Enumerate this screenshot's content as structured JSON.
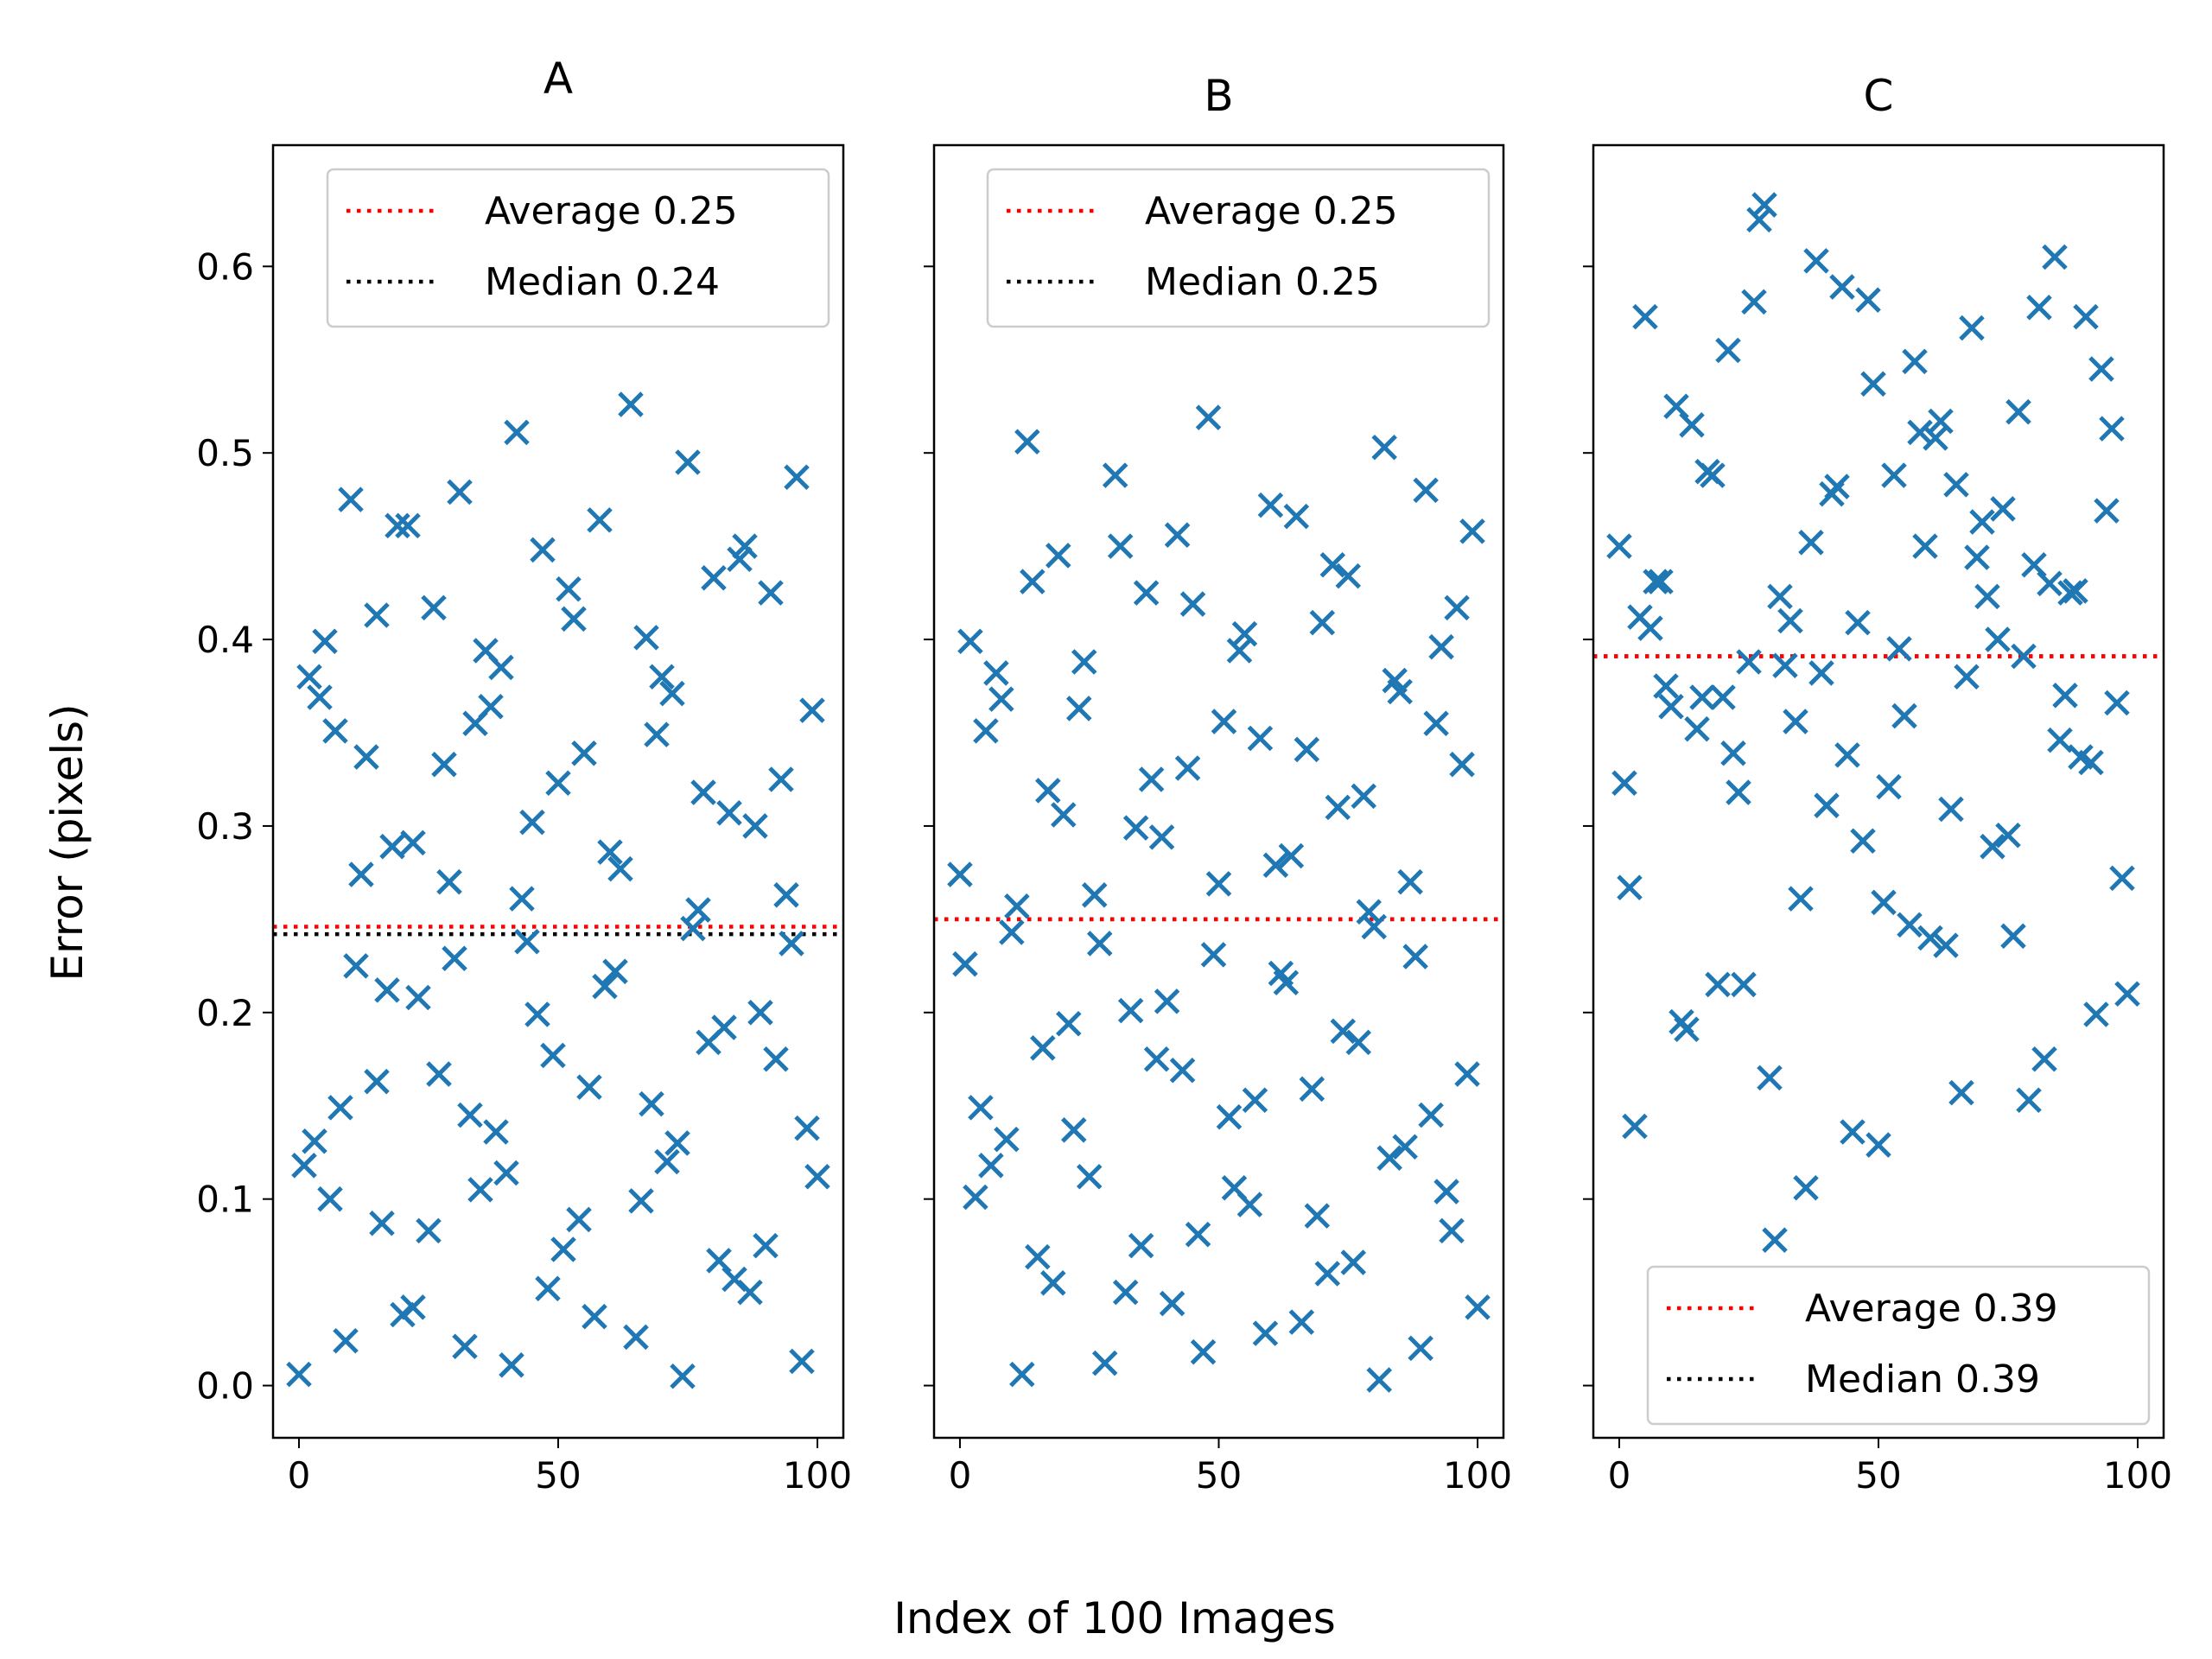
{
  "figure": {
    "xlabel": "Index of 100 Images",
    "ylabel": "Error (pixels)"
  },
  "colors": {
    "marker": "#1f77b4",
    "average_line": "#ff0000",
    "median_line": "#000000"
  },
  "chart_data": [
    {
      "type": "scatter",
      "title": "A",
      "marker": "x",
      "xlim": [
        -5,
        105
      ],
      "ylim": [
        -0.028,
        0.665
      ],
      "xticks": [
        0,
        50,
        100
      ],
      "yticks": [
        0.0,
        0.1,
        0.2,
        0.3,
        0.4,
        0.5,
        0.6
      ],
      "ytick_labels": [
        "0.0",
        "0.1",
        "0.2",
        "0.3",
        "0.4",
        "0.5",
        "0.6"
      ],
      "legend_position": "upper-right",
      "reference_lines": [
        {
          "label": "Average 0.25",
          "value": 0.246,
          "color": "#ff0000",
          "style": "dotted"
        },
        {
          "label": "Median 0.24",
          "value": 0.242,
          "color": "#000000",
          "style": "dotted"
        }
      ],
      "points": [
        [
          0,
          0.006
        ],
        [
          1,
          0.118
        ],
        [
          2,
          0.38
        ],
        [
          3,
          0.131
        ],
        [
          4,
          0.369
        ],
        [
          5,
          0.399
        ],
        [
          6,
          0.1
        ],
        [
          7,
          0.351
        ],
        [
          8,
          0.149
        ],
        [
          9,
          0.024
        ],
        [
          10,
          0.475
        ],
        [
          11,
          0.225
        ],
        [
          12,
          0.274
        ],
        [
          13,
          0.337
        ],
        [
          15,
          0.163
        ],
        [
          15,
          0.413
        ],
        [
          16,
          0.087
        ],
        [
          17,
          0.212
        ],
        [
          18,
          0.289
        ],
        [
          19,
          0.461
        ],
        [
          20,
          0.038
        ],
        [
          21,
          0.461
        ],
        [
          22,
          0.042
        ],
        [
          22,
          0.291
        ],
        [
          23,
          0.208
        ],
        [
          25,
          0.083
        ],
        [
          26,
          0.417
        ],
        [
          27,
          0.167
        ],
        [
          28,
          0.333
        ],
        [
          29,
          0.27
        ],
        [
          30,
          0.229
        ],
        [
          31,
          0.479
        ],
        [
          32,
          0.021
        ],
        [
          33,
          0.145
        ],
        [
          34,
          0.355
        ],
        [
          35,
          0.105
        ],
        [
          36,
          0.394
        ],
        [
          37,
          0.364
        ],
        [
          38,
          0.136
        ],
        [
          39,
          0.385
        ],
        [
          40,
          0.114
        ],
        [
          41,
          0.011
        ],
        [
          42,
          0.511
        ],
        [
          43,
          0.261
        ],
        [
          44,
          0.238
        ],
        [
          45,
          0.302
        ],
        [
          46,
          0.199
        ],
        [
          47,
          0.448
        ],
        [
          48,
          0.052
        ],
        [
          49,
          0.177
        ],
        [
          50,
          0.323
        ],
        [
          51,
          0.073
        ],
        [
          52,
          0.427
        ],
        [
          53,
          0.411
        ],
        [
          54,
          0.089
        ],
        [
          55,
          0.339
        ],
        [
          56,
          0.16
        ],
        [
          57,
          0.037
        ],
        [
          58,
          0.464
        ],
        [
          59,
          0.214
        ],
        [
          60,
          0.286
        ],
        [
          61,
          0.222
        ],
        [
          62,
          0.277
        ],
        [
          64,
          0.526
        ],
        [
          65,
          0.026
        ],
        [
          66,
          0.099
        ],
        [
          67,
          0.401
        ],
        [
          68,
          0.151
        ],
        [
          69,
          0.349
        ],
        [
          70,
          0.38
        ],
        [
          71,
          0.12
        ],
        [
          72,
          0.371
        ],
        [
          73,
          0.13
        ],
        [
          74,
          0.005
        ],
        [
          75,
          0.495
        ],
        [
          76,
          0.245
        ],
        [
          77,
          0.255
        ],
        [
          78,
          0.318
        ],
        [
          79,
          0.184
        ],
        [
          80,
          0.433
        ],
        [
          81,
          0.067
        ],
        [
          82,
          0.192
        ],
        [
          83,
          0.307
        ],
        [
          84,
          0.057
        ],
        [
          85,
          0.443
        ],
        [
          86,
          0.45
        ],
        [
          87,
          0.05
        ],
        [
          88,
          0.3
        ],
        [
          89,
          0.2
        ],
        [
          90,
          0.075
        ],
        [
          91,
          0.425
        ],
        [
          92,
          0.175
        ],
        [
          93,
          0.325
        ],
        [
          94,
          0.263
        ],
        [
          95,
          0.237
        ],
        [
          96,
          0.487
        ],
        [
          97,
          0.013
        ],
        [
          98,
          0.138
        ],
        [
          99,
          0.362
        ],
        [
          100,
          0.112
        ]
      ]
    },
    {
      "type": "scatter",
      "title": "B",
      "marker": "x",
      "xlim": [
        -5,
        105
      ],
      "ylim": [
        -0.028,
        0.665
      ],
      "xticks": [
        0,
        50,
        100
      ],
      "yticks": [
        0.0,
        0.1,
        0.2,
        0.3,
        0.4,
        0.5,
        0.6
      ],
      "legend_position": "upper-right",
      "reference_lines": [
        {
          "label": "Average 0.25",
          "value": 0.25,
          "color": "#ff0000",
          "style": "dotted"
        },
        {
          "label": "Median 0.25",
          "value": 0.25,
          "color": "#000000",
          "style": "dotted"
        }
      ],
      "points": [
        [
          0,
          0.274
        ],
        [
          1,
          0.226
        ],
        [
          2,
          0.399
        ],
        [
          3,
          0.101
        ],
        [
          4,
          0.149
        ],
        [
          5,
          0.351
        ],
        [
          6,
          0.118
        ],
        [
          7,
          0.382
        ],
        [
          8,
          0.368
        ],
        [
          9,
          0.132
        ],
        [
          10,
          0.243
        ],
        [
          11,
          0.257
        ],
        [
          12,
          0.006
        ],
        [
          13,
          0.506
        ],
        [
          14,
          0.431
        ],
        [
          15,
          0.069
        ],
        [
          16,
          0.181
        ],
        [
          17,
          0.319
        ],
        [
          18,
          0.055
        ],
        [
          19,
          0.445
        ],
        [
          20,
          0.306
        ],
        [
          21,
          0.194
        ],
        [
          22,
          0.137
        ],
        [
          23,
          0.363
        ],
        [
          24,
          0.388
        ],
        [
          25,
          0.112
        ],
        [
          26,
          0.263
        ],
        [
          27,
          0.237
        ],
        [
          28,
          0.012
        ],
        [
          30,
          0.488
        ],
        [
          31,
          0.45
        ],
        [
          32,
          0.05
        ],
        [
          33,
          0.201
        ],
        [
          34,
          0.299
        ],
        [
          35,
          0.075
        ],
        [
          36,
          0.425
        ],
        [
          37,
          0.325
        ],
        [
          38,
          0.175
        ],
        [
          39,
          0.294
        ],
        [
          40,
          0.206
        ],
        [
          41,
          0.044
        ],
        [
          42,
          0.456
        ],
        [
          43,
          0.169
        ],
        [
          44,
          0.331
        ],
        [
          45,
          0.419
        ],
        [
          46,
          0.081
        ],
        [
          47,
          0.018
        ],
        [
          48,
          0.519
        ],
        [
          49,
          0.231
        ],
        [
          50,
          0.269
        ],
        [
          51,
          0.356
        ],
        [
          52,
          0.144
        ],
        [
          53,
          0.106
        ],
        [
          54,
          0.394
        ],
        [
          55,
          0.403
        ],
        [
          56,
          0.097
        ],
        [
          57,
          0.153
        ],
        [
          58,
          0.347
        ],
        [
          59,
          0.028
        ],
        [
          60,
          0.472
        ],
        [
          61,
          0.279
        ],
        [
          62,
          0.221
        ],
        [
          63,
          0.216
        ],
        [
          64,
          0.284
        ],
        [
          65,
          0.466
        ],
        [
          66,
          0.034
        ],
        [
          67,
          0.341
        ],
        [
          68,
          0.159
        ],
        [
          69,
          0.091
        ],
        [
          70,
          0.409
        ],
        [
          71,
          0.06
        ],
        [
          72,
          0.44
        ],
        [
          73,
          0.31
        ],
        [
          74,
          0.19
        ],
        [
          75,
          0.434
        ],
        [
          76,
          0.066
        ],
        [
          77,
          0.184
        ],
        [
          78,
          0.316
        ],
        [
          79,
          0.254
        ],
        [
          80,
          0.246
        ],
        [
          81,
          0.003
        ],
        [
          82,
          0.503
        ],
        [
          83,
          0.122
        ],
        [
          84,
          0.378
        ],
        [
          85,
          0.372
        ],
        [
          86,
          0.128
        ],
        [
          87,
          0.27
        ],
        [
          88,
          0.23
        ],
        [
          89,
          0.02
        ],
        [
          90,
          0.48
        ],
        [
          91,
          0.145
        ],
        [
          92,
          0.355
        ],
        [
          93,
          0.396
        ],
        [
          94,
          0.104
        ],
        [
          95,
          0.083
        ],
        [
          96,
          0.417
        ],
        [
          97,
          0.333
        ],
        [
          98,
          0.167
        ],
        [
          99,
          0.458
        ],
        [
          100,
          0.042
        ]
      ]
    },
    {
      "type": "scatter",
      "title": "C",
      "marker": "x",
      "xlim": [
        -5,
        105
      ],
      "ylim": [
        -0.028,
        0.665
      ],
      "xticks": [
        0,
        50,
        100
      ],
      "yticks": [
        0.0,
        0.1,
        0.2,
        0.3,
        0.4,
        0.5,
        0.6
      ],
      "legend_position": "lower-right",
      "reference_lines": [
        {
          "label": "Average 0.39",
          "value": 0.391,
          "color": "#ff0000",
          "style": "dotted"
        },
        {
          "label": "Median 0.39",
          "value": 0.391,
          "color": "#000000",
          "style": "dotted"
        }
      ],
      "points": [
        [
          0,
          0.45
        ],
        [
          1,
          0.323
        ],
        [
          2,
          0.267
        ],
        [
          3,
          0.139
        ],
        [
          4,
          0.412
        ],
        [
          5,
          0.573
        ],
        [
          6,
          0.406
        ],
        [
          7,
          0.431
        ],
        [
          8,
          0.431
        ],
        [
          9,
          0.375
        ],
        [
          10,
          0.364
        ],
        [
          11,
          0.525
        ],
        [
          12,
          0.195
        ],
        [
          13,
          0.191
        ],
        [
          14,
          0.515
        ],
        [
          15,
          0.352
        ],
        [
          16,
          0.369
        ],
        [
          17,
          0.49
        ],
        [
          18,
          0.488
        ],
        [
          19,
          0.215
        ],
        [
          20,
          0.369
        ],
        [
          21,
          0.555
        ],
        [
          22,
          0.339
        ],
        [
          23,
          0.318
        ],
        [
          24,
          0.215
        ],
        [
          25,
          0.388
        ],
        [
          26,
          0.581
        ],
        [
          27,
          0.625
        ],
        [
          28,
          0.633
        ],
        [
          29,
          0.165
        ],
        [
          30,
          0.078
        ],
        [
          31,
          0.423
        ],
        [
          32,
          0.386
        ],
        [
          33,
          0.41
        ],
        [
          34,
          0.356
        ],
        [
          35,
          0.261
        ],
        [
          36,
          0.106
        ],
        [
          37,
          0.452
        ],
        [
          38,
          0.603
        ],
        [
          39,
          0.382
        ],
        [
          40,
          0.311
        ],
        [
          41,
          0.478
        ],
        [
          42,
          0.482
        ],
        [
          43,
          0.589
        ],
        [
          44,
          0.338
        ],
        [
          45,
          0.136
        ],
        [
          46,
          0.409
        ],
        [
          47,
          0.292
        ],
        [
          48,
          0.582
        ],
        [
          49,
          0.537
        ],
        [
          50,
          0.129
        ],
        [
          51,
          0.259
        ],
        [
          52,
          0.321
        ],
        [
          53,
          0.488
        ],
        [
          54,
          0.395
        ],
        [
          55,
          0.359
        ],
        [
          56,
          0.247
        ],
        [
          57,
          0.549
        ],
        [
          58,
          0.511
        ],
        [
          59,
          0.45
        ],
        [
          60,
          0.24
        ],
        [
          61,
          0.508
        ],
        [
          62,
          0.517
        ],
        [
          63,
          0.236
        ],
        [
          64,
          0.309
        ],
        [
          65,
          0.483
        ],
        [
          66,
          0.157
        ],
        [
          67,
          0.38
        ],
        [
          68,
          0.567
        ],
        [
          69,
          0.444
        ],
        [
          70,
          0.463
        ],
        [
          71,
          0.423
        ],
        [
          72,
          0.289
        ],
        [
          73,
          0.4
        ],
        [
          74,
          0.47
        ],
        [
          75,
          0.295
        ],
        [
          76,
          0.241
        ],
        [
          77,
          0.522
        ],
        [
          78,
          0.391
        ],
        [
          79,
          0.153
        ],
        [
          80,
          0.44
        ],
        [
          81,
          0.578
        ],
        [
          82,
          0.175
        ],
        [
          83,
          0.43
        ],
        [
          84,
          0.605
        ],
        [
          85,
          0.346
        ],
        [
          86,
          0.37
        ],
        [
          87,
          0.425
        ],
        [
          88,
          0.426
        ],
        [
          89,
          0.337
        ],
        [
          90,
          0.573
        ],
        [
          91,
          0.334
        ],
        [
          92,
          0.199
        ],
        [
          93,
          0.545
        ],
        [
          94,
          0.469
        ],
        [
          95,
          0.513
        ],
        [
          96,
          0.366
        ],
        [
          97,
          0.272
        ],
        [
          98,
          0.21
        ]
      ]
    }
  ]
}
